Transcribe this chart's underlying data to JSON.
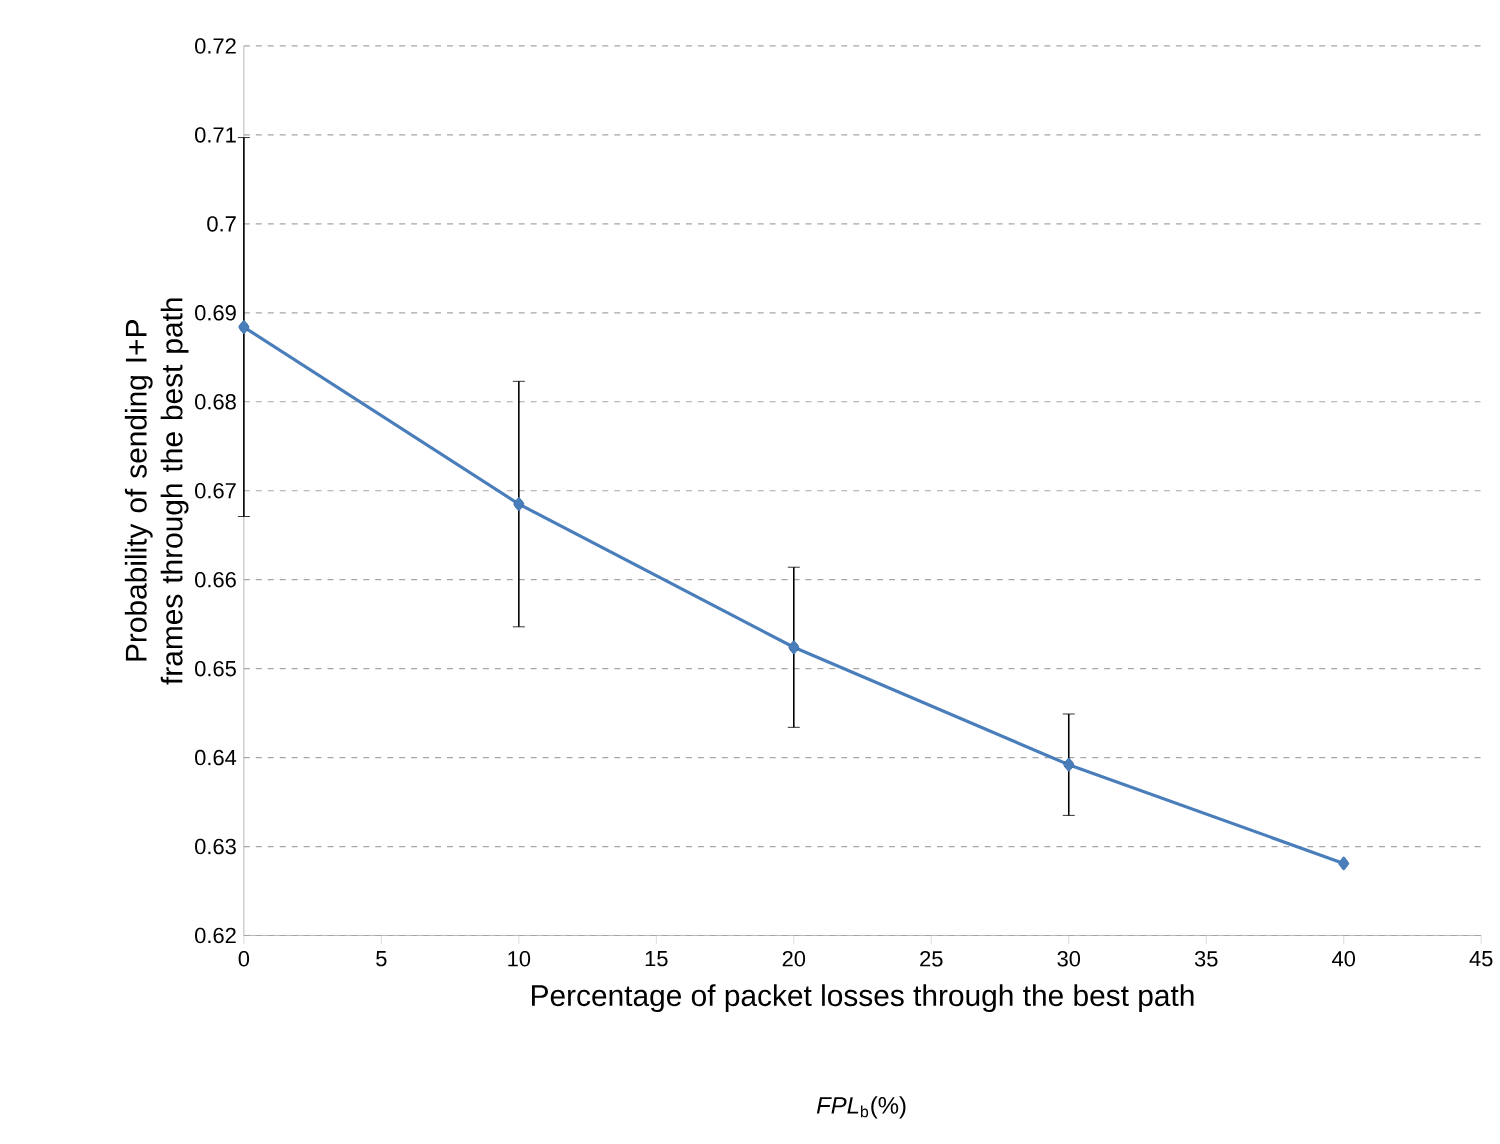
{
  "chart_data": {
    "type": "line",
    "xlabel": "Percentage of packet losses through the best path",
    "ylabel": "Probability of sending I+P frames through the best path",
    "annotations": [
      "*FPL*$_{b}$(%)"
    ],
    "x": [
      0,
      10,
      20,
      30,
      40
    ],
    "series": [
      {
        "color": "#4a7ebb",
        "values": [
          0.6884,
          0.6685,
          0.6524,
          0.6392,
          0.6281
        ],
        "errors": [
          0.0213,
          0.0138,
          0.009,
          0.0057,
          null
        ]
      }
    ],
    "xlim": [
      0,
      45
    ],
    "xticks": [
      0,
      5,
      10,
      15,
      20,
      25,
      30,
      35,
      40,
      45
    ],
    "ylim": [
      0.62,
      0.72
    ],
    "yticks": [
      0.62,
      0.63,
      0.64,
      0.65,
      0.66,
      0.67,
      0.68,
      0.69,
      0.7,
      0.71,
      0.72
    ],
    "grid": "y",
    "marker": "diamond",
    "line_style": "solid"
  }
}
